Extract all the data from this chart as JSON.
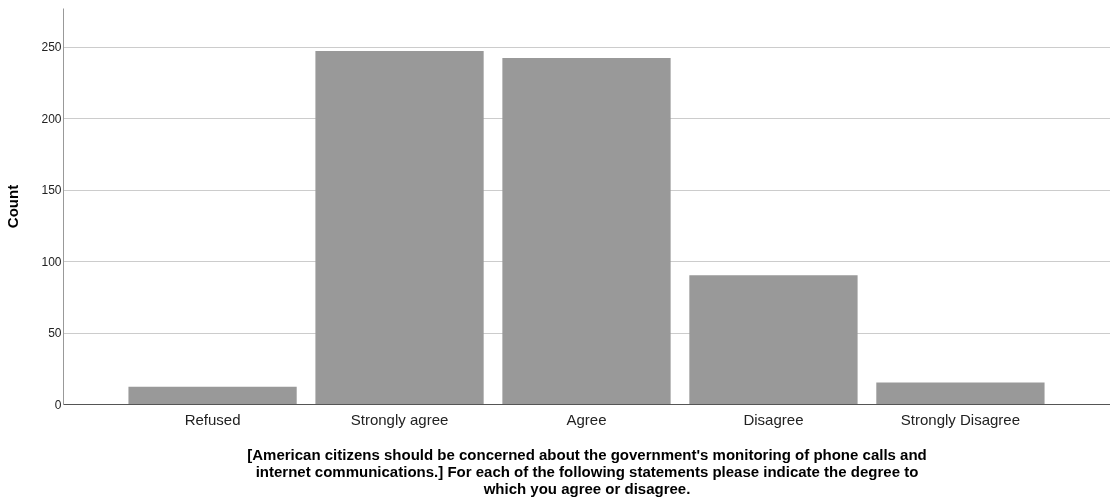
{
  "chart_data": {
    "type": "bar",
    "xlabel": "[American citizens should be concerned about the government's monitoring of phone calls and internet communications.] For each of the following statements please indicate the degree to which you agree or disagree.",
    "ylabel": "Count",
    "categories": [
      "Refused",
      "Strongly agree",
      "Agree",
      "Disagree",
      "Strongly Disagree"
    ],
    "values": [
      12,
      247,
      242,
      90,
      15
    ],
    "color": "#999999",
    "ylim": [
      0,
      277
    ],
    "yticks": [
      0,
      50,
      100,
      150,
      200,
      250
    ],
    "grid": "y"
  }
}
